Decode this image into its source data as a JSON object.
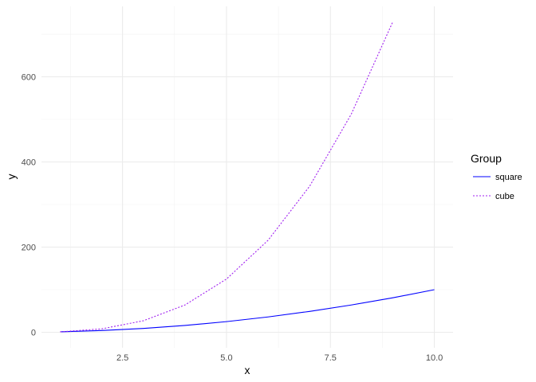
{
  "chart_data": {
    "type": "line",
    "xlabel": "x",
    "ylabel": "y",
    "xlim": [
      0.55,
      10.45
    ],
    "ylim": [
      -36.45,
      765.45
    ],
    "x_ticks": [
      2.5,
      5.0,
      7.5,
      10.0
    ],
    "x_tick_labels": [
      "2.5",
      "5.0",
      "7.5",
      "10.0"
    ],
    "y_ticks": [
      0,
      200,
      400,
      600
    ],
    "y_tick_labels": [
      "0",
      "200",
      "400",
      "600"
    ],
    "grid": true,
    "legend": {
      "title": "Group",
      "placement": "right"
    },
    "series": [
      {
        "name": "square",
        "color": "#0000ff",
        "dash": "solid",
        "x": [
          1,
          2,
          3,
          4,
          5,
          6,
          7,
          8,
          9,
          10
        ],
        "y": [
          1,
          4,
          9,
          16,
          25,
          36,
          49,
          64,
          81,
          100
        ]
      },
      {
        "name": "cube",
        "color": "#a020f0",
        "dash": "dotted",
        "x": [
          1,
          2,
          3,
          4,
          5,
          6,
          7,
          8,
          9
        ],
        "y": [
          1,
          8,
          27,
          64,
          125,
          216,
          343,
          512,
          729
        ]
      }
    ]
  }
}
